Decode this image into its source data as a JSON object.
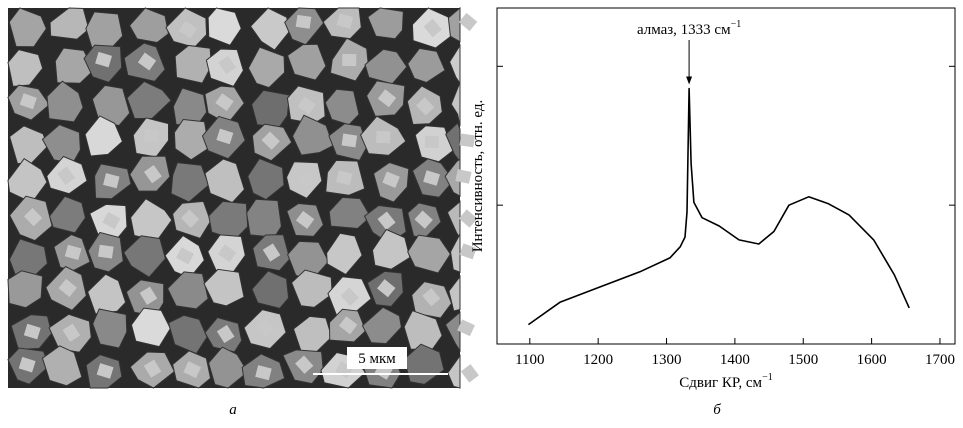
{
  "image": {
    "scale_bar": "5 мкм",
    "panel_label": "а"
  },
  "chart_data": {
    "type": "line",
    "panel_label": "б",
    "xlabel": "Сдвиг КР, см",
    "xlabel_sup": "−1",
    "ylabel": "Интенсивность, отн. ед.",
    "annotation": "алмаз, 1333 см",
    "annotation_sup": "−1",
    "x": [
      1098,
      1144,
      1202,
      1261,
      1305,
      1320,
      1327,
      1330,
      1333,
      1336,
      1340,
      1352,
      1377,
      1406,
      1435,
      1457,
      1479,
      1508,
      1537,
      1567,
      1603,
      1633,
      1655
    ],
    "series": [
      {
        "color": "#000000",
        "values": [
          0.14,
          0.3,
          0.41,
          0.52,
          0.62,
          0.7,
          0.77,
          0.95,
          1.84,
          1.3,
          1.02,
          0.91,
          0.85,
          0.75,
          0.72,
          0.81,
          1.0,
          1.06,
          1.01,
          0.93,
          0.75,
          0.5,
          0.26
        ]
      }
    ],
    "xlim": [
      1052,
      1722
    ],
    "xticks": [
      1100,
      1200,
      1300,
      1400,
      1500,
      1600,
      1700
    ],
    "ylim": [
      0,
      2.42
    ],
    "yticks": [
      1,
      2
    ]
  }
}
